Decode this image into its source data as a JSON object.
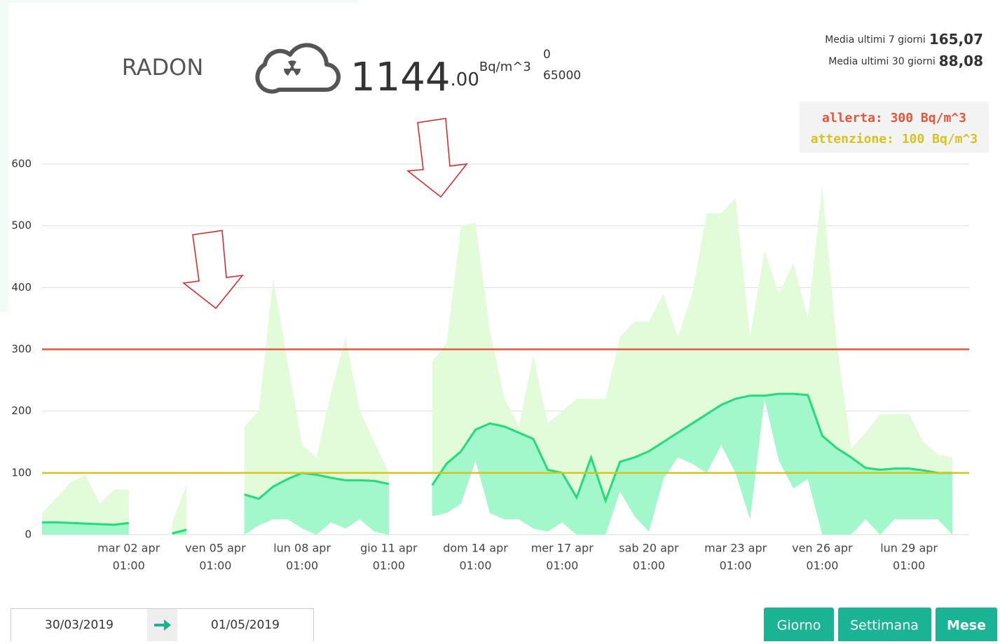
{
  "header": {
    "title": "RADON",
    "value_int": "1144",
    "value_dec": ".00",
    "unit": "Bq/m^3",
    "range_min": "0",
    "range_max": "65000",
    "avg7_label": "Media ultimi 7 giorni",
    "avg7_value": "165,07",
    "avg30_label": "Media ultimi 30 giorni",
    "avg30_value": "88,08"
  },
  "chart_data": {
    "type": "arearange",
    "x": [
      "2019-03-30T01:00",
      "2019-03-30T13:00",
      "2019-03-31T01:00",
      "2019-03-31T13:00",
      "2019-04-01T01:00",
      "2019-04-01T13:00",
      "2019-04-02T01:00",
      "2019-04-02T13:00",
      "2019-04-03T01:00",
      "2019-04-03T13:00",
      "2019-04-04T01:00",
      "2019-04-04T13:00",
      "2019-04-05T01:00",
      "2019-04-05T13:00",
      "2019-04-06T01:00",
      "2019-04-06T13:00",
      "2019-04-07T01:00",
      "2019-04-07T13:00",
      "2019-04-08T01:00",
      "2019-04-08T13:00",
      "2019-04-09T01:00",
      "2019-04-09T13:00",
      "2019-04-10T01:00",
      "2019-04-10T13:00",
      "2019-04-11T01:00",
      "2019-04-11T13:00",
      "2019-04-12T01:00",
      "2019-04-12T13:00",
      "2019-04-13T01:00",
      "2019-04-13T13:00",
      "2019-04-14T01:00",
      "2019-04-14T13:00",
      "2019-04-15T01:00",
      "2019-04-15T13:00",
      "2019-04-16T01:00",
      "2019-04-16T13:00",
      "2019-04-17T01:00",
      "2019-04-17T13:00",
      "2019-04-18T01:00",
      "2019-04-18T13:00",
      "2019-04-19T01:00",
      "2019-04-19T13:00",
      "2019-04-20T01:00",
      "2019-04-20T13:00",
      "2019-04-21T01:00",
      "2019-04-21T13:00",
      "2019-04-22T01:00",
      "2019-04-22T13:00",
      "2019-04-23T01:00",
      "2019-04-23T13:00",
      "2019-04-24T01:00",
      "2019-04-24T13:00",
      "2019-04-25T01:00",
      "2019-04-25T13:00",
      "2019-04-26T01:00",
      "2019-04-26T13:00",
      "2019-04-27T01:00",
      "2019-04-27T13:00",
      "2019-04-28T01:00",
      "2019-04-28T13:00",
      "2019-04-29T01:00",
      "2019-04-29T13:00",
      "2019-04-30T01:00",
      "2019-04-30T13:00"
    ],
    "series": [
      {
        "color": "#e2fcd9",
        "values": [
          35,
          60,
          85,
          97,
          50,
          73,
          73,
          null,
          null,
          20,
          80,
          null,
          null,
          null,
          175,
          200,
          415,
          280,
          145,
          125,
          230,
          320,
          200,
          150,
          100,
          null,
          null,
          280,
          310,
          500,
          505,
          330,
          220,
          175,
          290,
          180,
          200,
          220,
          220,
          220,
          320,
          345,
          345,
          390,
          320,
          390,
          520,
          520,
          545,
          320,
          460,
          390,
          440,
          350,
          565,
          310,
          140,
          165,
          195,
          195,
          195,
          150,
          130,
          125
        ]
      },
      {
        "color": "#22dc7c",
        "values": [
          20,
          20,
          19,
          18,
          17,
          16,
          19,
          null,
          null,
          2,
          8,
          null,
          null,
          null,
          65,
          58,
          78,
          90,
          100,
          97,
          92,
          88,
          88,
          87,
          82,
          null,
          null,
          80,
          115,
          135,
          170,
          180,
          175,
          165,
          155,
          105,
          100,
          60,
          125,
          55,
          118,
          125,
          135,
          150,
          165,
          180,
          195,
          210,
          220,
          225,
          225,
          228,
          228,
          226,
          160,
          140,
          125,
          108,
          105,
          107,
          107,
          104,
          100,
          100
        ]
      },
      {
        "color": "#a2f8ca",
        "values": [
          0,
          0,
          0,
          0,
          0,
          0,
          0,
          null,
          null,
          0,
          0,
          null,
          null,
          null,
          0,
          15,
          25,
          25,
          10,
          0,
          20,
          10,
          25,
          5,
          0,
          null,
          null,
          30,
          35,
          50,
          120,
          35,
          25,
          25,
          10,
          5,
          20,
          0,
          0,
          0,
          70,
          30,
          5,
          90,
          125,
          115,
          100,
          145,
          100,
          25,
          220,
          120,
          75,
          90,
          0,
          0,
          0,
          25,
          0,
          25,
          25,
          25,
          25,
          0
        ]
      }
    ],
    "xlim": [
      "2019-03-30T01:00",
      "2019-05-01T03:00"
    ],
    "xticks": [
      {
        "value": "2019-04-02T01:00",
        "label": [
          "mar 02 apr",
          "01:00"
        ]
      },
      {
        "value": "2019-04-05T01:00",
        "label": [
          "ven 05 apr",
          "01:00"
        ]
      },
      {
        "value": "2019-04-08T01:00",
        "label": [
          "lun 08 apr",
          "01:00"
        ]
      },
      {
        "value": "2019-04-11T01:00",
        "label": [
          "gio 11 apr",
          "01:00"
        ]
      },
      {
        "value": "2019-04-14T01:00",
        "label": [
          "dom 14 apr",
          "01:00"
        ]
      },
      {
        "value": "2019-04-17T01:00",
        "label": [
          "mer 17 apr",
          "01:00"
        ]
      },
      {
        "value": "2019-04-20T01:00",
        "label": [
          "sab 20 apr",
          "01:00"
        ]
      },
      {
        "value": "2019-04-23T01:00",
        "label": [
          "mar 23 apr",
          "01:00"
        ]
      },
      {
        "value": "2019-04-26T01:00",
        "label": [
          "ven 26 apr",
          "01:00"
        ]
      },
      {
        "value": "2019-04-29T01:00",
        "label": [
          "lun 29 apr",
          "01:00"
        ]
      }
    ],
    "ylim": [
      0,
      600
    ],
    "yticks": [
      0,
      100,
      200,
      300,
      400,
      500,
      600
    ],
    "grid": true,
    "thresholds": [
      {
        "label": "allerta: 300 Bq/m^3",
        "value": 300,
        "color": "#e8553a"
      },
      {
        "label": "attenzione: 100 Bq/m^3",
        "value": 100,
        "color": "#d8c21e"
      }
    ]
  },
  "controls": {
    "date_from": "30/03/2019",
    "date_to": "01/05/2019",
    "buttons": [
      "Giorno",
      "Settimana",
      "Mese"
    ]
  }
}
